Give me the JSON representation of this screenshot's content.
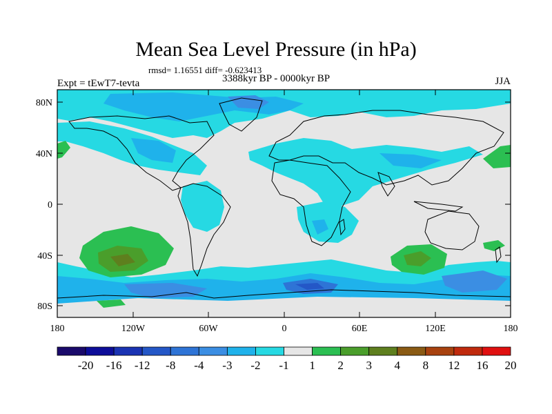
{
  "title": "Mean Sea Level Pressure (in hPa)",
  "stats_text": "rmsd= 1.16551 diff= -0.623413",
  "period_text": "3388kyr BP - 0000kyr BP",
  "experiment_text": "Expt = tEwT7-tevta",
  "season_text": "JJA",
  "lat_labels": [
    "80N",
    "40N",
    "0",
    "40S",
    "80S"
  ],
  "lon_labels": [
    "180",
    "120W",
    "60W",
    "0",
    "60E",
    "120E",
    "180"
  ],
  "colorbar": {
    "labels": [
      "-20",
      "-16",
      "-12",
      "-8",
      "-4",
      "-3",
      "-2",
      "-1",
      "1",
      "2",
      "3",
      "4",
      "8",
      "12",
      "16",
      "20"
    ],
    "colors": [
      "#1a0a6b",
      "#0d0d99",
      "#1a33b3",
      "#2457c7",
      "#2e74d6",
      "#3b8ee3",
      "#1fb2eb",
      "#26d9e3",
      "#e6e6e6",
      "#2bbf52",
      "#4a9e2b",
      "#5e7f1e",
      "#8a5a14",
      "#a8420f",
      "#c02a0d",
      "#e01010"
    ]
  },
  "colors": {
    "neutral": "#e6e6e6",
    "minus1": "#26d9e3",
    "minus2": "#1fb2eb",
    "minus3": "#3b8ee3",
    "minus4": "#2e74d6",
    "minus8": "#2457c7",
    "plus1": "#2bbf52",
    "plus2": "#4a9e2b",
    "plus3": "#5e7f1e"
  }
}
